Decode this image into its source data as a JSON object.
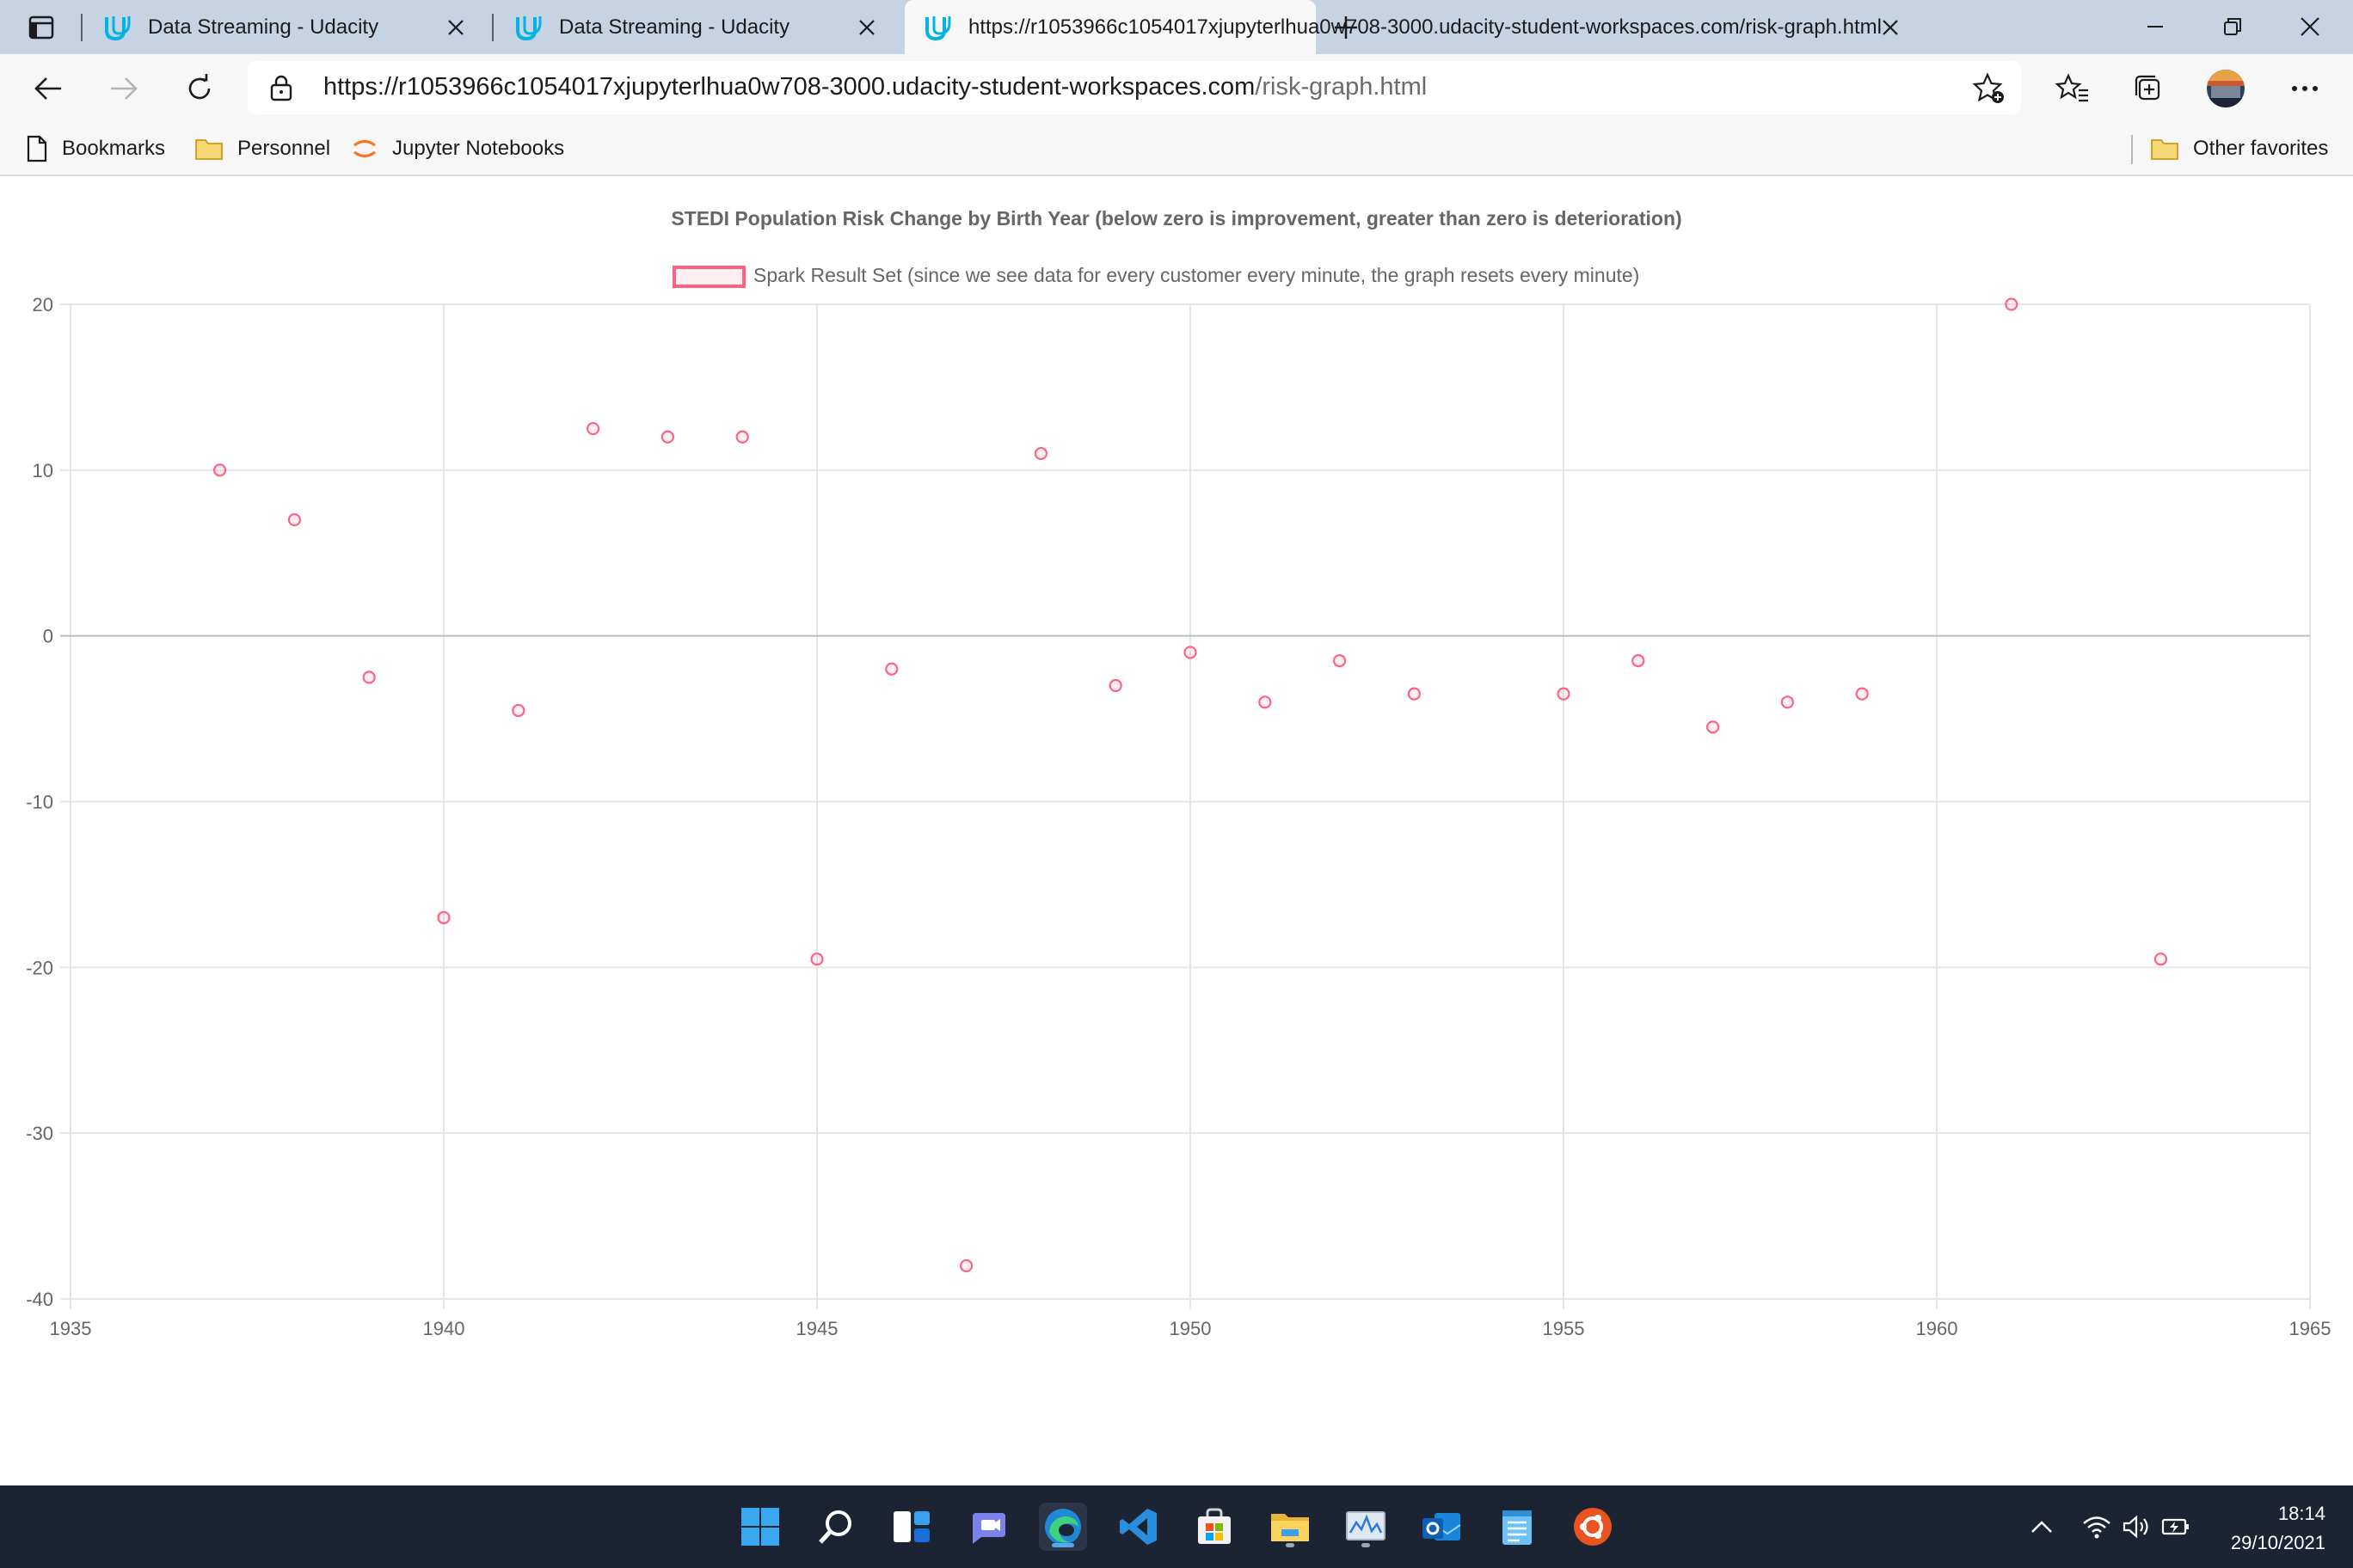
{
  "browser": {
    "tabs": [
      {
        "title": "Data Streaming - Udacity",
        "active": false
      },
      {
        "title": "Data Streaming - Udacity",
        "active": false
      },
      {
        "title": "https://r1053966c1054017xjupyterlhua0w708-3000.udacity-student-workspaces.com/risk-graph.html",
        "active": true
      }
    ],
    "url_host": "https://r1053966c1054017xjupyterlhua0w708-3000.udacity-student-workspaces.com",
    "url_path": "/risk-graph.html",
    "bookmarks": [
      {
        "label": "Bookmarks",
        "icon": "page-icon"
      },
      {
        "label": "Personnel",
        "icon": "folder-icon"
      },
      {
        "label": "Jupyter Notebooks",
        "icon": "jupyter-icon"
      }
    ],
    "other_favorites": "Other favorites"
  },
  "chart_data": {
    "type": "scatter",
    "title": "STEDI Population Risk Change by Birth Year (below zero is improvement, greater than zero is deterioration)",
    "legend": "Spark Result Set (since we see data for every customer every minute, the graph resets every minute)",
    "legend_position": "top",
    "xlim": [
      1935,
      1965
    ],
    "ylim": [
      -40,
      20
    ],
    "x_ticks": [
      "1935",
      "1940",
      "1945",
      "1950",
      "1955",
      "1960",
      "1965"
    ],
    "y_ticks": [
      "20",
      "10",
      "0",
      "-10",
      "-20",
      "-30",
      "-40"
    ],
    "grid": true,
    "color": "#ff6384",
    "points": [
      {
        "x": 1937,
        "y": 10
      },
      {
        "x": 1938,
        "y": 7
      },
      {
        "x": 1939,
        "y": -2.5
      },
      {
        "x": 1940,
        "y": -17
      },
      {
        "x": 1941,
        "y": -4.5
      },
      {
        "x": 1942,
        "y": 12.5
      },
      {
        "x": 1943,
        "y": 12
      },
      {
        "x": 1944,
        "y": 12
      },
      {
        "x": 1945,
        "y": -19.5
      },
      {
        "x": 1946,
        "y": -2
      },
      {
        "x": 1947,
        "y": -38
      },
      {
        "x": 1948,
        "y": 11
      },
      {
        "x": 1949,
        "y": -3
      },
      {
        "x": 1950,
        "y": -1
      },
      {
        "x": 1951,
        "y": -4
      },
      {
        "x": 1952,
        "y": -1.5
      },
      {
        "x": 1953,
        "y": -3.5
      },
      {
        "x": 1955,
        "y": -3.5
      },
      {
        "x": 1956,
        "y": -1.5
      },
      {
        "x": 1957,
        "y": -5.5
      },
      {
        "x": 1958,
        "y": -4
      },
      {
        "x": 1959,
        "y": -3.5
      },
      {
        "x": 1961,
        "y": 20
      },
      {
        "x": 1963,
        "y": -19.5
      }
    ]
  },
  "taskbar": {
    "apps": [
      "windows-start-icon",
      "search-icon",
      "widgets-icon",
      "teams-chat-icon",
      "edge-icon",
      "vscode-icon",
      "store-icon",
      "file-explorer-icon",
      "performance-monitor-icon",
      "outlook-icon",
      "notepad-icon",
      "ubuntu-icon"
    ],
    "time": "18:14",
    "date": "29/10/2021"
  }
}
